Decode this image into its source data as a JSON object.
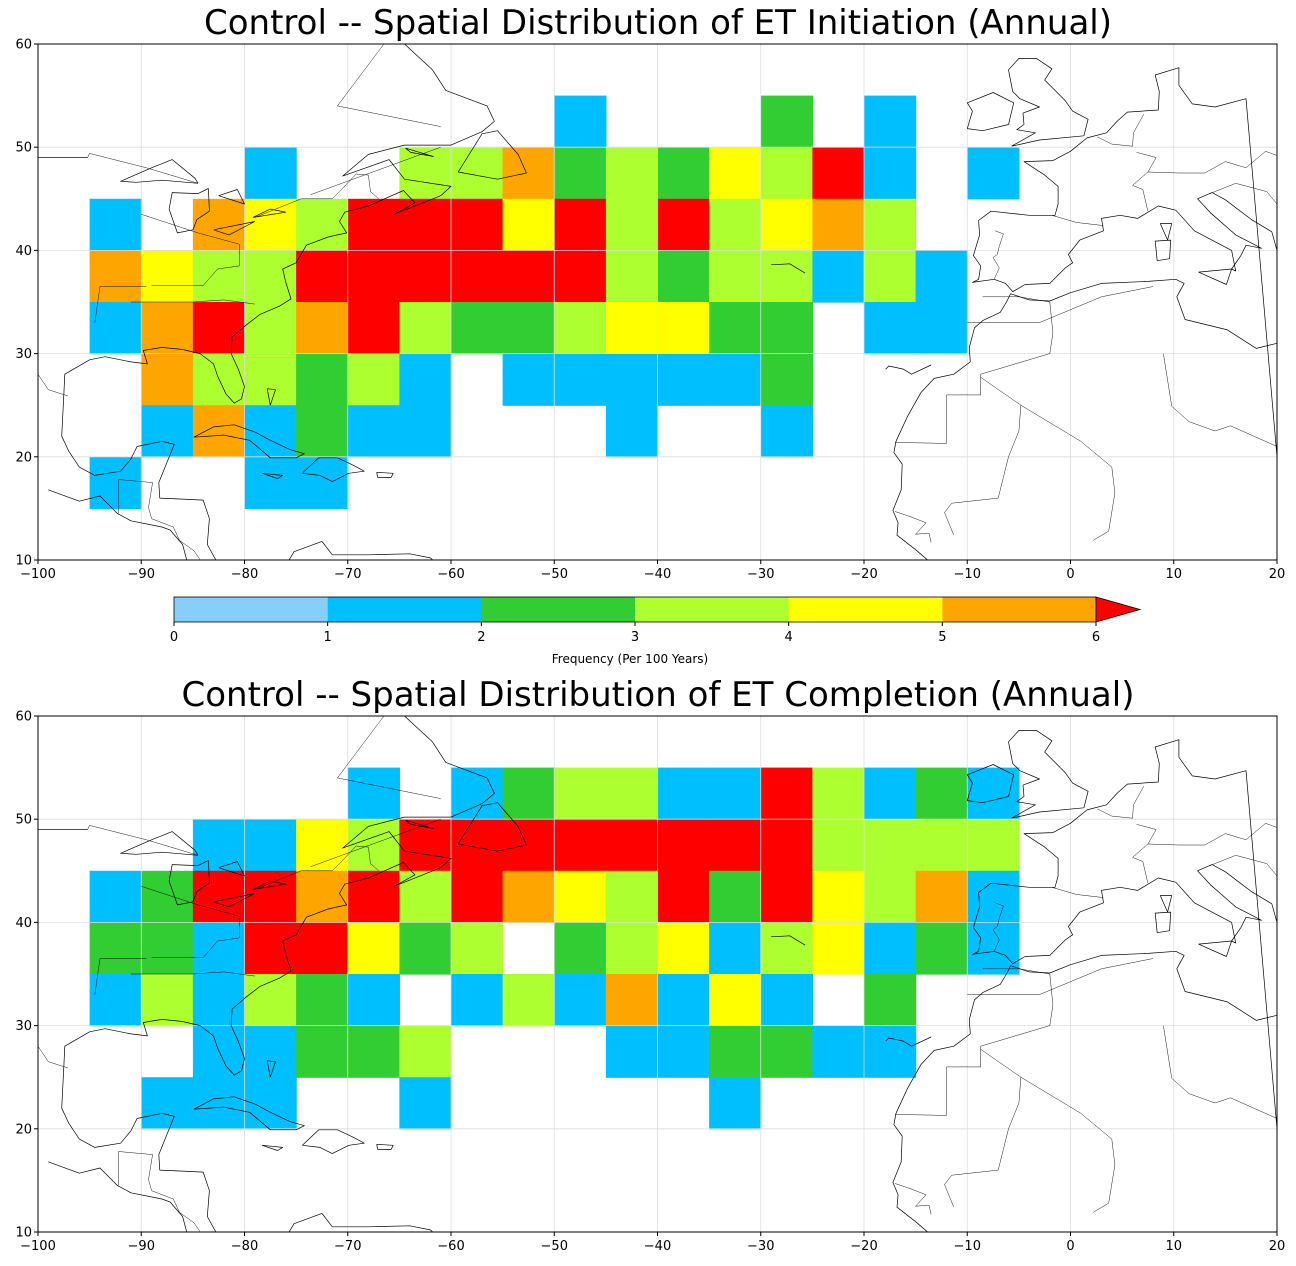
{
  "colors": {
    "bins": [
      "#87cefa",
      "#00bfff",
      "#32cd32",
      "#adff2f",
      "#ffff00",
      "#ffa500",
      "#ff0000"
    ],
    "coast": "#000000",
    "grid": "#dddddd"
  },
  "axes": {
    "lon_range": [
      -100,
      20
    ],
    "lat_range": [
      10,
      60
    ],
    "lon_ticks": [
      "−100",
      "−90",
      "−80",
      "−70",
      "−60",
      "−50",
      "−40",
      "−30",
      "−20",
      "−10",
      "0",
      "10",
      "20"
    ],
    "lat_ticks": [
      "10",
      "20",
      "30",
      "40",
      "50",
      "60"
    ],
    "grid": true,
    "cell_size_deg": 5
  },
  "colorbar": {
    "ticks": [
      "0",
      "1",
      "2",
      "3",
      "4",
      "5",
      "6"
    ],
    "label": "Frequency (Per 100 Years)",
    "extend": "max"
  },
  "chart_data": [
    {
      "type": "heatmap",
      "title": "Control -- Spatial Distribution of ET Initiation (Annual)",
      "cells": [
        {
          "lon": -50,
          "lat": 50,
          "bin": 1
        },
        {
          "lon": -30,
          "lat": 50,
          "bin": 2
        },
        {
          "lon": -20,
          "lat": 50,
          "bin": 1
        },
        {
          "lon": -80,
          "lat": 45,
          "bin": 1
        },
        {
          "lon": -65,
          "lat": 45,
          "bin": 3
        },
        {
          "lon": -60,
          "lat": 45,
          "bin": 3
        },
        {
          "lon": -55,
          "lat": 45,
          "bin": 5
        },
        {
          "lon": -50,
          "lat": 45,
          "bin": 2
        },
        {
          "lon": -45,
          "lat": 45,
          "bin": 3
        },
        {
          "lon": -40,
          "lat": 45,
          "bin": 2
        },
        {
          "lon": -35,
          "lat": 45,
          "bin": 4
        },
        {
          "lon": -30,
          "lat": 45,
          "bin": 3
        },
        {
          "lon": -25,
          "lat": 45,
          "bin": 6
        },
        {
          "lon": -20,
          "lat": 45,
          "bin": 1
        },
        {
          "lon": -10,
          "lat": 45,
          "bin": 1
        },
        {
          "lon": -95,
          "lat": 40,
          "bin": 1
        },
        {
          "lon": -85,
          "lat": 40,
          "bin": 5
        },
        {
          "lon": -80,
          "lat": 40,
          "bin": 4
        },
        {
          "lon": -75,
          "lat": 40,
          "bin": 3
        },
        {
          "lon": -70,
          "lat": 40,
          "bin": 6
        },
        {
          "lon": -65,
          "lat": 40,
          "bin": 6
        },
        {
          "lon": -60,
          "lat": 40,
          "bin": 6
        },
        {
          "lon": -55,
          "lat": 40,
          "bin": 4
        },
        {
          "lon": -50,
          "lat": 40,
          "bin": 6
        },
        {
          "lon": -45,
          "lat": 40,
          "bin": 3
        },
        {
          "lon": -40,
          "lat": 40,
          "bin": 6
        },
        {
          "lon": -35,
          "lat": 40,
          "bin": 3
        },
        {
          "lon": -30,
          "lat": 40,
          "bin": 4
        },
        {
          "lon": -25,
          "lat": 40,
          "bin": 5
        },
        {
          "lon": -20,
          "lat": 40,
          "bin": 3
        },
        {
          "lon": -95,
          "lat": 35,
          "bin": 5
        },
        {
          "lon": -90,
          "lat": 35,
          "bin": 4
        },
        {
          "lon": -85,
          "lat": 35,
          "bin": 3
        },
        {
          "lon": -80,
          "lat": 35,
          "bin": 3
        },
        {
          "lon": -75,
          "lat": 35,
          "bin": 6
        },
        {
          "lon": -70,
          "lat": 35,
          "bin": 6
        },
        {
          "lon": -65,
          "lat": 35,
          "bin": 6
        },
        {
          "lon": -60,
          "lat": 35,
          "bin": 6
        },
        {
          "lon": -55,
          "lat": 35,
          "bin": 6
        },
        {
          "lon": -50,
          "lat": 35,
          "bin": 6
        },
        {
          "lon": -45,
          "lat": 35,
          "bin": 3
        },
        {
          "lon": -40,
          "lat": 35,
          "bin": 2
        },
        {
          "lon": -35,
          "lat": 35,
          "bin": 3
        },
        {
          "lon": -30,
          "lat": 35,
          "bin": 3
        },
        {
          "lon": -25,
          "lat": 35,
          "bin": 1
        },
        {
          "lon": -20,
          "lat": 35,
          "bin": 3
        },
        {
          "lon": -15,
          "lat": 35,
          "bin": 1
        },
        {
          "lon": -95,
          "lat": 30,
          "bin": 1
        },
        {
          "lon": -90,
          "lat": 30,
          "bin": 5
        },
        {
          "lon": -85,
          "lat": 30,
          "bin": 6
        },
        {
          "lon": -80,
          "lat": 30,
          "bin": 3
        },
        {
          "lon": -75,
          "lat": 30,
          "bin": 5
        },
        {
          "lon": -70,
          "lat": 30,
          "bin": 6
        },
        {
          "lon": -65,
          "lat": 30,
          "bin": 3
        },
        {
          "lon": -60,
          "lat": 30,
          "bin": 2
        },
        {
          "lon": -55,
          "lat": 30,
          "bin": 2
        },
        {
          "lon": -50,
          "lat": 30,
          "bin": 3
        },
        {
          "lon": -45,
          "lat": 30,
          "bin": 4
        },
        {
          "lon": -40,
          "lat": 30,
          "bin": 4
        },
        {
          "lon": -35,
          "lat": 30,
          "bin": 2
        },
        {
          "lon": -30,
          "lat": 30,
          "bin": 2
        },
        {
          "lon": -20,
          "lat": 30,
          "bin": 1
        },
        {
          "lon": -15,
          "lat": 30,
          "bin": 1
        },
        {
          "lon": -90,
          "lat": 25,
          "bin": 5
        },
        {
          "lon": -85,
          "lat": 25,
          "bin": 3
        },
        {
          "lon": -80,
          "lat": 25,
          "bin": 3
        },
        {
          "lon": -75,
          "lat": 25,
          "bin": 2
        },
        {
          "lon": -70,
          "lat": 25,
          "bin": 3
        },
        {
          "lon": -65,
          "lat": 25,
          "bin": 1
        },
        {
          "lon": -55,
          "lat": 25,
          "bin": 1
        },
        {
          "lon": -50,
          "lat": 25,
          "bin": 1
        },
        {
          "lon": -45,
          "lat": 25,
          "bin": 1
        },
        {
          "lon": -40,
          "lat": 25,
          "bin": 1
        },
        {
          "lon": -35,
          "lat": 25,
          "bin": 1
        },
        {
          "lon": -30,
          "lat": 25,
          "bin": 2
        },
        {
          "lon": -90,
          "lat": 20,
          "bin": 1
        },
        {
          "lon": -85,
          "lat": 20,
          "bin": 5
        },
        {
          "lon": -80,
          "lat": 20,
          "bin": 1
        },
        {
          "lon": -75,
          "lat": 20,
          "bin": 2
        },
        {
          "lon": -70,
          "lat": 20,
          "bin": 1
        },
        {
          "lon": -65,
          "lat": 20,
          "bin": 1
        },
        {
          "lon": -45,
          "lat": 20,
          "bin": 1
        },
        {
          "lon": -30,
          "lat": 20,
          "bin": 1
        },
        {
          "lon": -95,
          "lat": 15,
          "bin": 1
        },
        {
          "lon": -80,
          "lat": 15,
          "bin": 1
        },
        {
          "lon": -75,
          "lat": 15,
          "bin": 1
        }
      ]
    },
    {
      "type": "heatmap",
      "title": "Control -- Spatial Distribution of ET Completion (Annual)",
      "cells": [
        {
          "lon": -70,
          "lat": 50,
          "bin": 1
        },
        {
          "lon": -60,
          "lat": 50,
          "bin": 1
        },
        {
          "lon": -55,
          "lat": 50,
          "bin": 2
        },
        {
          "lon": -50,
          "lat": 50,
          "bin": 3
        },
        {
          "lon": -45,
          "lat": 50,
          "bin": 3
        },
        {
          "lon": -40,
          "lat": 50,
          "bin": 1
        },
        {
          "lon": -35,
          "lat": 50,
          "bin": 1
        },
        {
          "lon": -30,
          "lat": 50,
          "bin": 6
        },
        {
          "lon": -25,
          "lat": 50,
          "bin": 3
        },
        {
          "lon": -20,
          "lat": 50,
          "bin": 1
        },
        {
          "lon": -15,
          "lat": 50,
          "bin": 2
        },
        {
          "lon": -10,
          "lat": 50,
          "bin": 1
        },
        {
          "lon": -85,
          "lat": 45,
          "bin": 1
        },
        {
          "lon": -80,
          "lat": 45,
          "bin": 1
        },
        {
          "lon": -75,
          "lat": 45,
          "bin": 4
        },
        {
          "lon": -70,
          "lat": 45,
          "bin": 3
        },
        {
          "lon": -65,
          "lat": 45,
          "bin": 6
        },
        {
          "lon": -60,
          "lat": 45,
          "bin": 6
        },
        {
          "lon": -55,
          "lat": 45,
          "bin": 6
        },
        {
          "lon": -50,
          "lat": 45,
          "bin": 6
        },
        {
          "lon": -45,
          "lat": 45,
          "bin": 6
        },
        {
          "lon": -40,
          "lat": 45,
          "bin": 6
        },
        {
          "lon": -35,
          "lat": 45,
          "bin": 6
        },
        {
          "lon": -30,
          "lat": 45,
          "bin": 6
        },
        {
          "lon": -25,
          "lat": 45,
          "bin": 3
        },
        {
          "lon": -20,
          "lat": 45,
          "bin": 3
        },
        {
          "lon": -15,
          "lat": 45,
          "bin": 3
        },
        {
          "lon": -10,
          "lat": 45,
          "bin": 3
        },
        {
          "lon": -95,
          "lat": 40,
          "bin": 1
        },
        {
          "lon": -90,
          "lat": 40,
          "bin": 2
        },
        {
          "lon": -85,
          "lat": 40,
          "bin": 6
        },
        {
          "lon": -80,
          "lat": 40,
          "bin": 6
        },
        {
          "lon": -75,
          "lat": 40,
          "bin": 5
        },
        {
          "lon": -70,
          "lat": 40,
          "bin": 6
        },
        {
          "lon": -65,
          "lat": 40,
          "bin": 3
        },
        {
          "lon": -60,
          "lat": 40,
          "bin": 6
        },
        {
          "lon": -55,
          "lat": 40,
          "bin": 5
        },
        {
          "lon": -50,
          "lat": 40,
          "bin": 4
        },
        {
          "lon": -45,
          "lat": 40,
          "bin": 3
        },
        {
          "lon": -40,
          "lat": 40,
          "bin": 6
        },
        {
          "lon": -35,
          "lat": 40,
          "bin": 2
        },
        {
          "lon": -30,
          "lat": 40,
          "bin": 6
        },
        {
          "lon": -25,
          "lat": 40,
          "bin": 4
        },
        {
          "lon": -20,
          "lat": 40,
          "bin": 3
        },
        {
          "lon": -15,
          "lat": 40,
          "bin": 5
        },
        {
          "lon": -10,
          "lat": 40,
          "bin": 1
        },
        {
          "lon": -95,
          "lat": 35,
          "bin": 2
        },
        {
          "lon": -90,
          "lat": 35,
          "bin": 2
        },
        {
          "lon": -85,
          "lat": 35,
          "bin": 1
        },
        {
          "lon": -80,
          "lat": 35,
          "bin": 6
        },
        {
          "lon": -75,
          "lat": 35,
          "bin": 6
        },
        {
          "lon": -70,
          "lat": 35,
          "bin": 4
        },
        {
          "lon": -65,
          "lat": 35,
          "bin": 2
        },
        {
          "lon": -60,
          "lat": 35,
          "bin": 3
        },
        {
          "lon": -50,
          "lat": 35,
          "bin": 2
        },
        {
          "lon": -45,
          "lat": 35,
          "bin": 3
        },
        {
          "lon": -40,
          "lat": 35,
          "bin": 4
        },
        {
          "lon": -35,
          "lat": 35,
          "bin": 1
        },
        {
          "lon": -30,
          "lat": 35,
          "bin": 3
        },
        {
          "lon": -25,
          "lat": 35,
          "bin": 4
        },
        {
          "lon": -20,
          "lat": 35,
          "bin": 1
        },
        {
          "lon": -15,
          "lat": 35,
          "bin": 2
        },
        {
          "lon": -10,
          "lat": 35,
          "bin": 1
        },
        {
          "lon": -95,
          "lat": 30,
          "bin": 1
        },
        {
          "lon": -90,
          "lat": 30,
          "bin": 3
        },
        {
          "lon": -85,
          "lat": 30,
          "bin": 1
        },
        {
          "lon": -80,
          "lat": 30,
          "bin": 3
        },
        {
          "lon": -75,
          "lat": 30,
          "bin": 2
        },
        {
          "lon": -70,
          "lat": 30,
          "bin": 1
        },
        {
          "lon": -60,
          "lat": 30,
          "bin": 1
        },
        {
          "lon": -55,
          "lat": 30,
          "bin": 3
        },
        {
          "lon": -50,
          "lat": 30,
          "bin": 1
        },
        {
          "lon": -45,
          "lat": 30,
          "bin": 5
        },
        {
          "lon": -40,
          "lat": 30,
          "bin": 1
        },
        {
          "lon": -35,
          "lat": 30,
          "bin": 4
        },
        {
          "lon": -30,
          "lat": 30,
          "bin": 1
        },
        {
          "lon": -20,
          "lat": 30,
          "bin": 2
        },
        {
          "lon": -85,
          "lat": 25,
          "bin": 1
        },
        {
          "lon": -80,
          "lat": 25,
          "bin": 1
        },
        {
          "lon": -75,
          "lat": 25,
          "bin": 2
        },
        {
          "lon": -70,
          "lat": 25,
          "bin": 2
        },
        {
          "lon": -65,
          "lat": 25,
          "bin": 3
        },
        {
          "lon": -45,
          "lat": 25,
          "bin": 1
        },
        {
          "lon": -40,
          "lat": 25,
          "bin": 1
        },
        {
          "lon": -35,
          "lat": 25,
          "bin": 2
        },
        {
          "lon": -30,
          "lat": 25,
          "bin": 2
        },
        {
          "lon": -25,
          "lat": 25,
          "bin": 1
        },
        {
          "lon": -20,
          "lat": 25,
          "bin": 1
        },
        {
          "lon": -90,
          "lat": 20,
          "bin": 1
        },
        {
          "lon": -85,
          "lat": 20,
          "bin": 1
        },
        {
          "lon": -80,
          "lat": 20,
          "bin": 1
        },
        {
          "lon": -65,
          "lat": 20,
          "bin": 1
        },
        {
          "lon": -35,
          "lat": 20,
          "bin": 1
        }
      ]
    }
  ]
}
